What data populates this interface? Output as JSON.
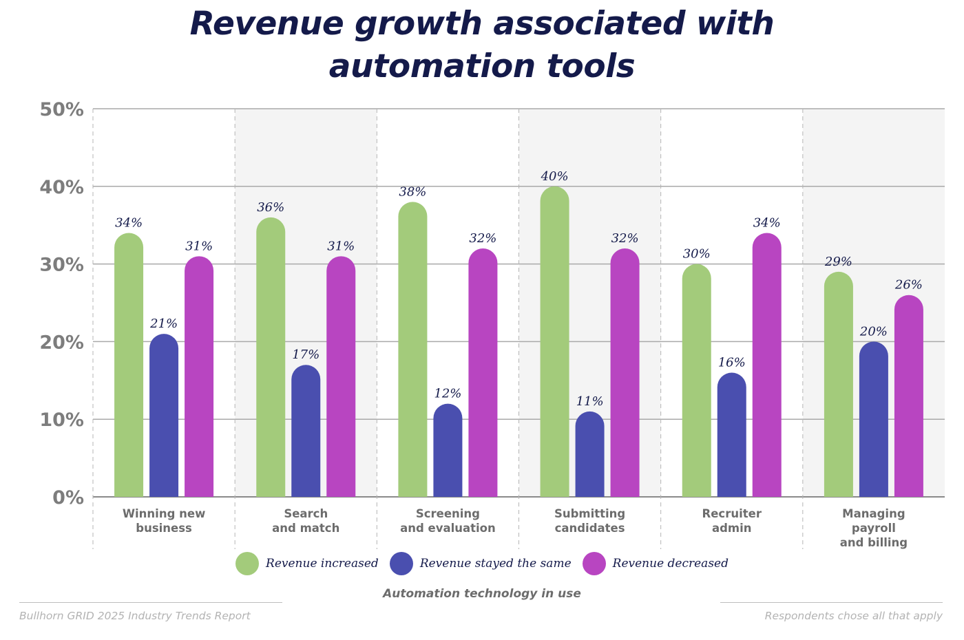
{
  "chart_data": {
    "type": "bar",
    "title_lines": [
      "Revenue growth associated with",
      "automation tools"
    ],
    "xlabel": "Automation technology in use",
    "ylabel": "",
    "ylim": [
      0,
      50
    ],
    "yticks": [
      0,
      10,
      20,
      30,
      40,
      50
    ],
    "ytick_labels": [
      "0%",
      "10%",
      "20%",
      "30%",
      "40%",
      "50%"
    ],
    "grid": true,
    "legend_position": "bottom",
    "categories": [
      [
        "Winning new",
        "business"
      ],
      [
        "Search",
        "and match"
      ],
      [
        "Screening",
        "and evaluation"
      ],
      [
        "Submitting",
        "candidates"
      ],
      [
        "Recruiter",
        "admin"
      ],
      [
        "Managing",
        "payroll",
        "and billing"
      ]
    ],
    "series": [
      {
        "name": "Revenue increased",
        "color": "#a3cb7b",
        "values": [
          34,
          36,
          38,
          40,
          30,
          29
        ]
      },
      {
        "name": "Revenue stayed the same",
        "color": "#4a4faf",
        "values": [
          21,
          17,
          12,
          11,
          16,
          20
        ]
      },
      {
        "name": "Revenue decreased",
        "color": "#b845c1",
        "values": [
          31,
          31,
          32,
          32,
          34,
          26
        ]
      }
    ],
    "value_suffix": "%"
  },
  "footer": {
    "source": "Bullhorn GRID 2025 Industry Trends Report",
    "note": "Respondents chose all that apply"
  }
}
